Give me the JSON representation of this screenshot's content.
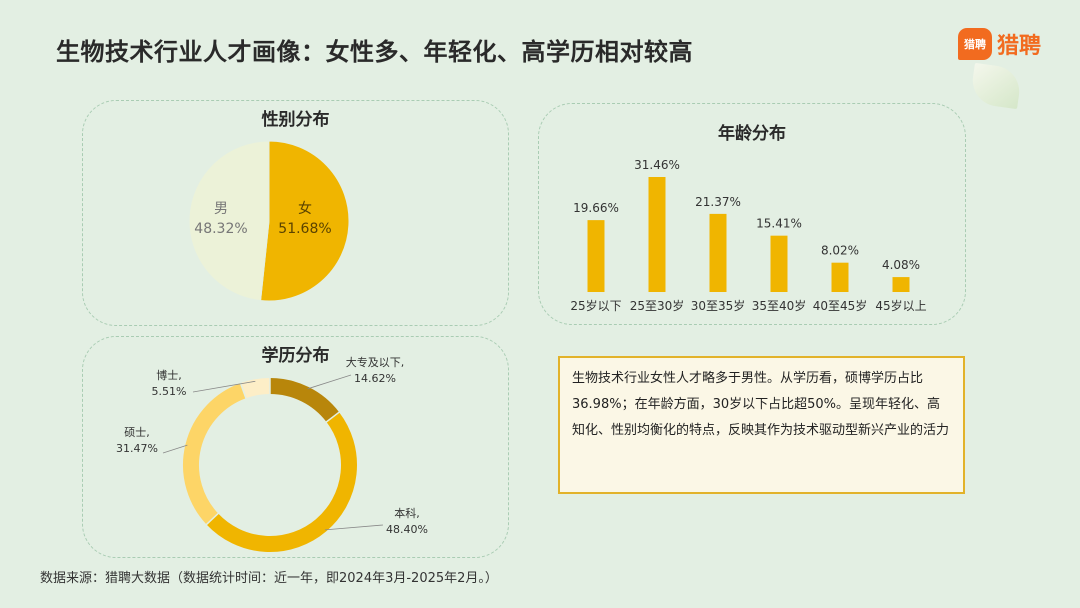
{
  "title": "生物技术行业人才画像：女性多、年轻化、高学历相对较高",
  "logo": {
    "badge": "猎聘",
    "text": "猎聘"
  },
  "source": "数据来源：猎聘大数据（数据统计时间：近一年，即2024年3月-2025年2月。）",
  "summary": "生物技术行业女性人才略多于男性。从学历看，硕博学历占比36.98%；在年龄方面，30岁以下占比超50%。呈现年轻化、高知化、性别均衡化的特点，反映其作为技术驱动型新兴产业的活力",
  "colors": {
    "background": "#e3efe3",
    "gold": "#f0b500",
    "light_cream": "#ecf2d8",
    "dark_gold": "#b8860b",
    "light_yellow": "#fdd567",
    "pale_yellow": "#fdeec7",
    "logo_orange": "#f26b1f"
  },
  "chart_data": [
    {
      "type": "pie",
      "title": "性别分布",
      "slices": [
        {
          "name": "女",
          "value": 51.68,
          "label": "51.68%",
          "color": "#f0b500"
        },
        {
          "name": "男",
          "value": 48.32,
          "label": "48.32%",
          "color": "#ecf2d8"
        }
      ]
    },
    {
      "type": "bar",
      "title": "年龄分布",
      "categories": [
        "25岁以下",
        "25至30岁",
        "30至35岁",
        "35至40岁",
        "40至45岁",
        "45岁以上"
      ],
      "values": [
        19.66,
        31.46,
        21.37,
        15.41,
        8.02,
        4.08
      ],
      "labels": [
        "19.66%",
        "31.46%",
        "21.37%",
        "15.41%",
        "8.02%",
        "4.08%"
      ],
      "color": "#f0b500"
    },
    {
      "type": "pie",
      "subtype": "donut",
      "title": "学历分布",
      "slices": [
        {
          "name": "大专及以下,",
          "value": 14.62,
          "label": "14.62%",
          "color": "#b8860b"
        },
        {
          "name": "本科,",
          "value": 48.4,
          "label": "48.40%",
          "color": "#f0b500"
        },
        {
          "name": "硕士,",
          "value": 31.47,
          "label": "31.47%",
          "color": "#fdd567"
        },
        {
          "name": "博士,",
          "value": 5.51,
          "label": "5.51%",
          "color": "#fdeec7"
        }
      ]
    }
  ]
}
